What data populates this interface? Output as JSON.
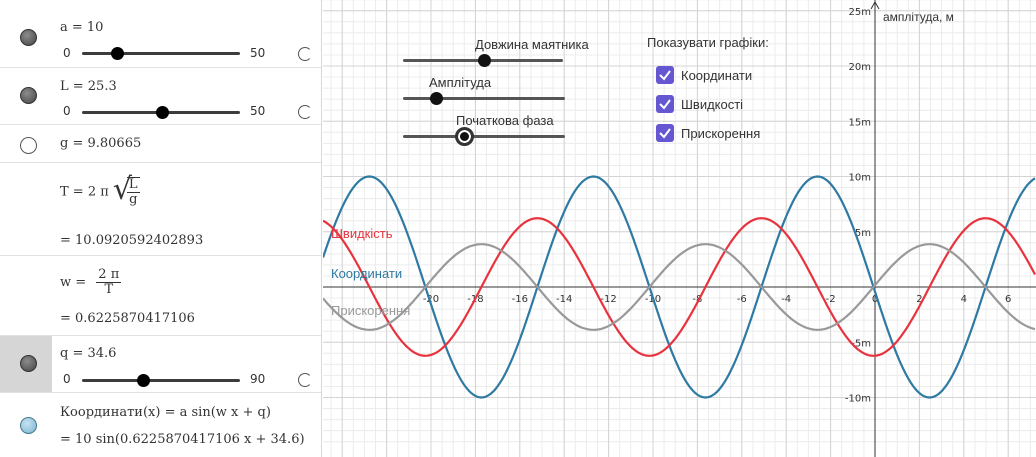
{
  "algebra": {
    "a": {
      "label": "a = 10",
      "min": "0",
      "max": "50",
      "value": 10
    },
    "L": {
      "label": "L = 25.3",
      "min": "0",
      "max": "50",
      "value": 25.3
    },
    "g": {
      "label": "g = 9.80665"
    },
    "T": {
      "lhs": "T = 2 π",
      "num": "L",
      "den": "g",
      "value": "= 10.0920592402893"
    },
    "w": {
      "lhs": "w =",
      "num": "2 π",
      "den": "T",
      "value": "= 0.6225870417106"
    },
    "q": {
      "label": "q = 34.6",
      "min": "0",
      "max": "90",
      "value": 34.6
    },
    "coord": {
      "def": "Координати(x) = a sin(w x + q)",
      "value": "= 10 sin(0.6225870417106 x + 34.6)"
    }
  },
  "graphics": {
    "slider_length_label": "Довжина маятника",
    "slider_amplitude_label": "Амплітуда",
    "slider_phase_label": "Початкова фаза",
    "show_graphs_label": "Показувати графіки:",
    "checkboxes": [
      {
        "label": "Координати",
        "checked": true
      },
      {
        "label": "Швидкості",
        "checked": true
      },
      {
        "label": "Прискорення",
        "checked": true
      }
    ],
    "y_axis_label": "амплітуда, м",
    "curve_labels": {
      "velocity": "Швидкість",
      "coord": "Координати",
      "accel": "Прискорення"
    }
  },
  "chart_data": {
    "type": "line",
    "x_ticks": [
      "-20",
      "-18",
      "-16",
      "-14",
      "-12",
      "-10",
      "-8",
      "-6",
      "-4",
      "-2",
      "0",
      "2",
      "4",
      "6"
    ],
    "y_ticks": [
      "25m",
      "20m",
      "15m",
      "10m",
      "5m",
      "-5m",
      "-10m"
    ],
    "xlim": [
      -24.5,
      7.3
    ],
    "ylim": [
      -14.5,
      26.5
    ],
    "ylabel": "амплітуда, м",
    "grid": true,
    "series": [
      {
        "name": "Координати",
        "color": "#2e7aa3",
        "amplitude": 10,
        "omega": 0.6225870417106,
        "phase": 34.6,
        "kind": "sin"
      },
      {
        "name": "Швидкість",
        "color": "#e8333d",
        "amplitude": 6.225870417106,
        "omega": 0.6225870417106,
        "phase": 34.6,
        "kind": "cos"
      },
      {
        "name": "Прискорення",
        "color": "#999999",
        "amplitude": -3.876,
        "omega": 0.6225870417106,
        "phase": 34.6,
        "kind": "sin"
      }
    ]
  }
}
